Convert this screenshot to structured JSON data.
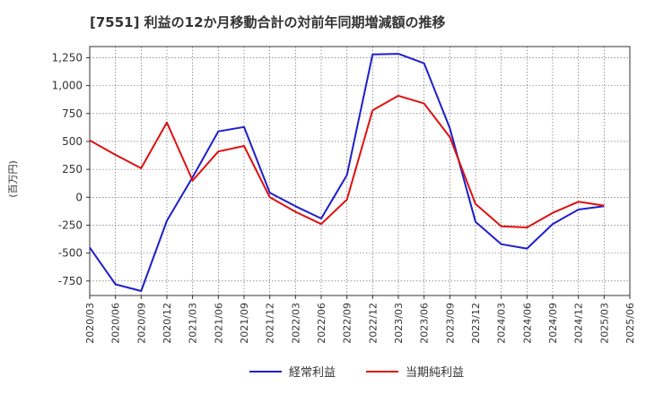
{
  "chart_data": {
    "type": "line",
    "title": "[7551]  利益の12か月移動合計の対前年同期増減額の推移",
    "xlabel": "",
    "ylabel": "(百万円)",
    "ylim": [
      -880,
      1350
    ],
    "yticks": [
      1250,
      1000,
      750,
      500,
      250,
      0,
      -250,
      -500,
      -750
    ],
    "ytick_labels": [
      "1,250",
      "1,000",
      "750",
      "500",
      "250",
      "0",
      "-250",
      "-500",
      "-750"
    ],
    "grid": true,
    "legend_position": "bottom",
    "categories": [
      "2020/03",
      "2020/06",
      "2020/09",
      "2020/12",
      "2021/03",
      "2021/06",
      "2021/09",
      "2021/12",
      "2022/03",
      "2022/06",
      "2022/09",
      "2022/12",
      "2023/03",
      "2023/06",
      "2023/09",
      "2023/12",
      "2024/03",
      "2024/06",
      "2024/09",
      "2024/12",
      "2025/03",
      "2025/06"
    ],
    "series": [
      {
        "name": "経常利益",
        "color": "#1f1fcc",
        "values": [
          -450,
          -780,
          -840,
          -210,
          180,
          590,
          630,
          40,
          -80,
          -190,
          200,
          1280,
          1285,
          1200,
          620,
          -220,
          -420,
          -460,
          -240,
          -110,
          -80,
          null
        ]
      },
      {
        "name": "当期純利益",
        "color": "#dd1111",
        "values": [
          510,
          380,
          260,
          670,
          150,
          410,
          460,
          0,
          -130,
          -240,
          -20,
          780,
          910,
          840,
          540,
          -60,
          -260,
          -270,
          -140,
          -40,
          -75,
          null
        ]
      }
    ]
  }
}
